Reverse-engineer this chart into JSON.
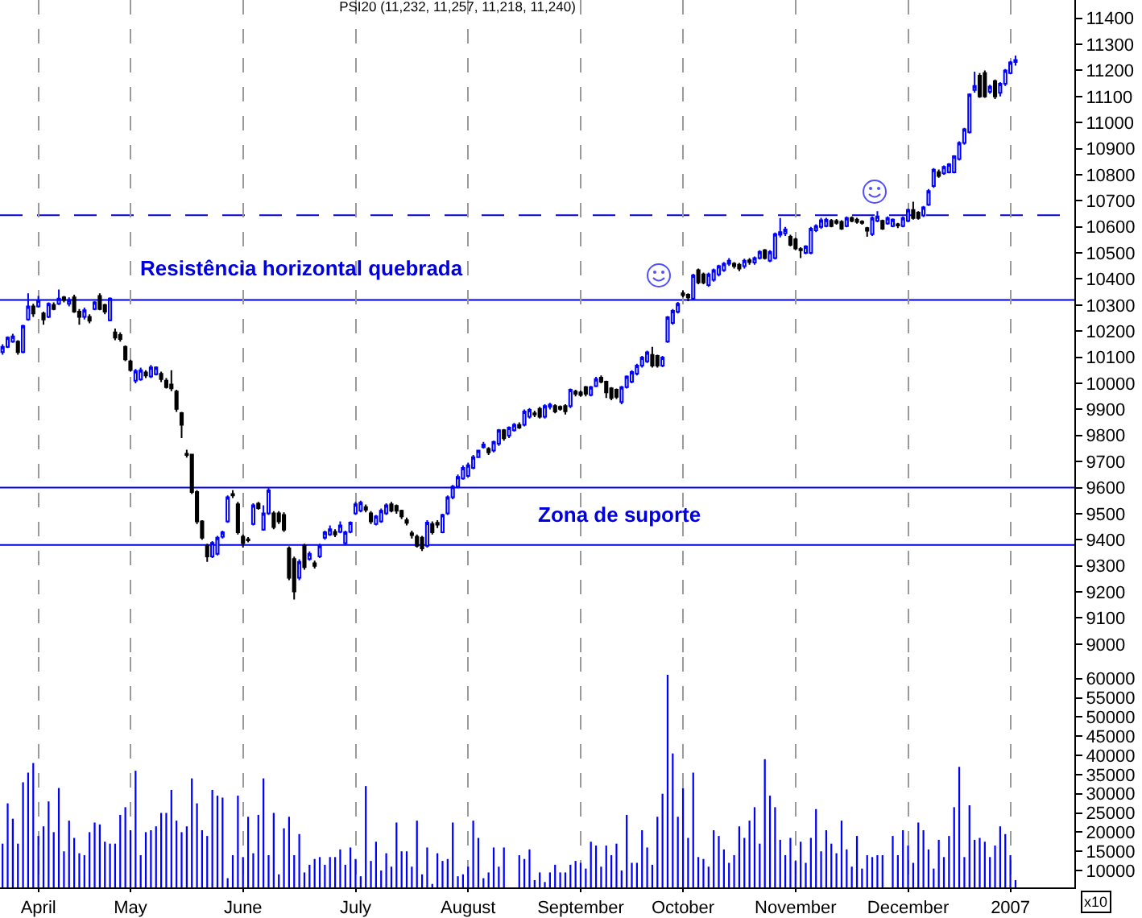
{
  "chart_data": [
    {
      "type": "candlestick",
      "title": "PSI20 (11,232, 11,257, 11,218, 11,240)",
      "categories": [
        null,
        null,
        null,
        null,
        null,
        null,
        null,
        null,
        null,
        null,
        null,
        null,
        null,
        null,
        null,
        null,
        null,
        null,
        null,
        null,
        null,
        null,
        null,
        null,
        null,
        null,
        null,
        null,
        null,
        null,
        null,
        null,
        null,
        null,
        null,
        null,
        null,
        null,
        null,
        null,
        null,
        null,
        null,
        null,
        null,
        null,
        null,
        null,
        null,
        null,
        null,
        null,
        null,
        null,
        null,
        null,
        null,
        null,
        null,
        null,
        null,
        null,
        null,
        null,
        null,
        null,
        null,
        null,
        null,
        null,
        null,
        null,
        null,
        null,
        null,
        null,
        null,
        null,
        null,
        null,
        null,
        null,
        null,
        null,
        null,
        null,
        null,
        null,
        null,
        null,
        null,
        null,
        null,
        null,
        null,
        null,
        null,
        null,
        null,
        null,
        null,
        null,
        null,
        null,
        null,
        null,
        null,
        null,
        null,
        null,
        null,
        null,
        null,
        null,
        null,
        null,
        null,
        null,
        null,
        null,
        null,
        null,
        null,
        null,
        null,
        null,
        null,
        null,
        null,
        null,
        null,
        null,
        null,
        null,
        null,
        null,
        null,
        null,
        null,
        null,
        null,
        null,
        null,
        null,
        null,
        null,
        null,
        null,
        null,
        null,
        null,
        null,
        null,
        null,
        null,
        null,
        null,
        null,
        null,
        null,
        null,
        null,
        null,
        null,
        null,
        null,
        null,
        null,
        null,
        null,
        null,
        null,
        null,
        null,
        null,
        null,
        null,
        null,
        null,
        null,
        null,
        null,
        null,
        null,
        null,
        null,
        null,
        null,
        null,
        null,
        null,
        null,
        null,
        null,
        null,
        null,
        null,
        null,
        null,
        null,
        null,
        null,
        null,
        null,
        null,
        null,
        null,
        null,
        null,
        null
      ],
      "ohlc": [
        [
          10120,
          10150,
          10110,
          10140
        ],
        [
          10140,
          10180,
          10135,
          10175
        ],
        [
          10160,
          10190,
          10155,
          10180
        ],
        [
          10160,
          10165,
          10110,
          10120
        ],
        [
          10120,
          10225,
          10115,
          10220
        ],
        [
          10245,
          10345,
          10240,
          10295
        ],
        [
          10295,
          10305,
          10255,
          10268
        ],
        [
          10295,
          10335,
          10290,
          10318
        ],
        [
          10268,
          10275,
          10225,
          10245
        ],
        [
          10255,
          10310,
          10250,
          10305
        ],
        [
          10300,
          10310,
          10280,
          10285
        ],
        [
          10305,
          10360,
          10300,
          10325
        ],
        [
          10330,
          10335,
          10310,
          10320
        ],
        [
          10305,
          10330,
          10295,
          10320
        ],
        [
          10330,
          10340,
          10270,
          10275
        ],
        [
          10275,
          10285,
          10225,
          10255
        ],
        [
          10255,
          10290,
          10245,
          10280
        ],
        [
          10255,
          10265,
          10230,
          10240
        ],
        [
          10285,
          10315,
          10280,
          10310
        ],
        [
          10335,
          10345,
          10280,
          10285
        ],
        [
          10300,
          10305,
          10265,
          10275
        ],
        [
          10242,
          10330,
          10238,
          10325
        ],
        [
          10195,
          10210,
          10165,
          10175
        ],
        [
          10185,
          10195,
          10160,
          10170
        ],
        [
          10140,
          10145,
          10085,
          10092
        ],
        [
          10084,
          10090,
          10045,
          10051
        ],
        [
          10010,
          10055,
          10000,
          10047
        ],
        [
          10015,
          10060,
          10010,
          10050
        ],
        [
          10042,
          10050,
          10020,
          10030
        ],
        [
          10026,
          10070,
          10020,
          10061
        ],
        [
          10035,
          10065,
          10030,
          10061
        ],
        [
          10036,
          10045,
          10005,
          10016
        ],
        [
          10010,
          10020,
          9980,
          9985
        ],
        [
          9995,
          10050,
          9970,
          9981
        ],
        [
          9968,
          9975,
          9890,
          9902
        ],
        [
          9886,
          9890,
          9790,
          9841
        ],
        [
          9730,
          9745,
          9715,
          9725
        ],
        [
          9727,
          9730,
          9575,
          9583
        ],
        [
          9583,
          9590,
          9460,
          9470
        ],
        [
          9470,
          9475,
          9400,
          9408
        ],
        [
          9377,
          9385,
          9315,
          9336
        ],
        [
          9336,
          9395,
          9330,
          9388
        ],
        [
          9346,
          9415,
          9340,
          9408
        ],
        [
          9412,
          9435,
          9405,
          9429
        ],
        [
          9470,
          9570,
          9465,
          9563
        ],
        [
          9575,
          9590,
          9560,
          9570
        ],
        [
          9536,
          9545,
          9420,
          9429
        ],
        [
          9412,
          9420,
          9370,
          9387
        ],
        [
          9402,
          9410,
          9390,
          9398
        ],
        [
          9460,
          9540,
          9455,
          9532
        ],
        [
          9538,
          9545,
          9515,
          9521
        ],
        [
          9439,
          9532,
          9435,
          9501
        ],
        [
          9501,
          9600,
          9495,
          9589
        ],
        [
          9501,
          9510,
          9440,
          9449
        ],
        [
          9501,
          9510,
          9460,
          9470
        ],
        [
          9495,
          9505,
          9430,
          9439
        ],
        [
          9367,
          9375,
          9245,
          9254
        ],
        [
          9326,
          9335,
          9171,
          9202
        ],
        [
          9254,
          9325,
          9245,
          9315
        ],
        [
          9377,
          9385,
          9285,
          9295
        ],
        [
          9326,
          9355,
          9320,
          9346
        ],
        [
          9310,
          9320,
          9290,
          9300
        ],
        [
          9336,
          9385,
          9330,
          9377
        ],
        [
          9408,
          9435,
          9400,
          9429
        ],
        [
          9420,
          9455,
          9415,
          9440
        ],
        [
          9430,
          9440,
          9410,
          9420
        ],
        [
          9430,
          9470,
          9425,
          9455
        ],
        [
          9387,
          9435,
          9380,
          9429
        ],
        [
          9430,
          9470,
          9425,
          9466
        ],
        [
          9501,
          9545,
          9495,
          9536
        ],
        [
          9511,
          9550,
          9505,
          9542
        ],
        [
          9525,
          9535,
          9505,
          9515
        ],
        [
          9501,
          9510,
          9460,
          9470
        ],
        [
          9460,
          9495,
          9455,
          9490
        ],
        [
          9470,
          9520,
          9465,
          9511
        ],
        [
          9501,
          9540,
          9495,
          9532
        ],
        [
          9536,
          9545,
          9505,
          9511
        ],
        [
          9530,
          9535,
          9500,
          9511
        ],
        [
          9511,
          9515,
          9480,
          9490
        ],
        [
          9475,
          9485,
          9455,
          9465
        ],
        [
          9425,
          9435,
          9405,
          9418
        ],
        [
          9412,
          9420,
          9370,
          9377
        ],
        [
          9408,
          9415,
          9357,
          9367
        ],
        [
          9377,
          9475,
          9370,
          9466
        ],
        [
          9460,
          9470,
          9420,
          9429
        ],
        [
          9465,
          9475,
          9445,
          9458
        ],
        [
          9429,
          9500,
          9425,
          9495
        ],
        [
          9501,
          9570,
          9495,
          9563
        ],
        [
          9563,
          9610,
          9555,
          9604
        ],
        [
          9604,
          9650,
          9598,
          9641
        ],
        [
          9635,
          9685,
          9630,
          9676
        ],
        [
          9645,
          9696,
          9640,
          9686
        ],
        [
          9676,
          9725,
          9670,
          9717
        ],
        [
          9717,
          9745,
          9715,
          9742
        ],
        [
          9755,
          9775,
          9750,
          9765
        ],
        [
          9748,
          9755,
          9725,
          9735
        ],
        [
          9742,
          9780,
          9735,
          9775
        ],
        [
          9768,
          9825,
          9760,
          9820
        ],
        [
          9820,
          9825,
          9780,
          9789
        ],
        [
          9799,
          9835,
          9790,
          9830
        ],
        [
          9820,
          9848,
          9815,
          9841
        ],
        [
          9840,
          9850,
          9825,
          9830
        ],
        [
          9841,
          9900,
          9835,
          9892
        ],
        [
          9872,
          9905,
          9865,
          9898
        ],
        [
          9885,
          9895,
          9870,
          9880
        ],
        [
          9902,
          9910,
          9865,
          9872
        ],
        [
          9872,
          9920,
          9865,
          9913
        ],
        [
          9910,
          9925,
          9900,
          9918
        ],
        [
          9913,
          9920,
          9885,
          9892
        ],
        [
          9910,
          9915,
          9895,
          9902
        ],
        [
          9913,
          9920,
          9880,
          9893
        ],
        [
          9913,
          9980,
          9905,
          9975
        ],
        [
          9968,
          9975,
          9950,
          9960
        ],
        [
          9965,
          9972,
          9948,
          9955
        ],
        [
          9985,
          9990,
          9950,
          9960
        ],
        [
          9955,
          9990,
          9950,
          9985
        ],
        [
          9989,
          10025,
          9985,
          10016
        ],
        [
          10022,
          10030,
          10000,
          10006
        ],
        [
          10006,
          10010,
          9944,
          9965
        ],
        [
          9981,
          9985,
          9935,
          9944
        ],
        [
          9975,
          9980,
          9940,
          9948
        ],
        [
          9928,
          9990,
          9920,
          9985
        ],
        [
          9985,
          10030,
          9980,
          10026
        ],
        [
          10006,
          10050,
          10000,
          10043
        ],
        [
          10037,
          10075,
          10030,
          10068
        ],
        [
          10068,
          10105,
          10060,
          10099
        ],
        [
          10084,
          10125,
          10078,
          10119
        ],
        [
          10109,
          10140,
          10060,
          10068
        ],
        [
          10105,
          10110,
          10060,
          10068
        ],
        [
          10068,
          10105,
          10062,
          10099
        ],
        [
          10160,
          10258,
          10155,
          10253
        ],
        [
          10232,
          10285,
          10225,
          10278
        ],
        [
          10274,
          10312,
          10268,
          10305
        ],
        [
          10345,
          10356,
          10330,
          10338
        ],
        [
          10340,
          10345,
          10315,
          10330
        ],
        [
          10325,
          10420,
          10320,
          10414
        ],
        [
          10434,
          10440,
          10380,
          10387
        ],
        [
          10418,
          10425,
          10380,
          10387
        ],
        [
          10377,
          10425,
          10370,
          10418
        ],
        [
          10397,
          10440,
          10390,
          10434
        ],
        [
          10418,
          10455,
          10410,
          10449
        ],
        [
          10434,
          10465,
          10428,
          10459
        ],
        [
          10459,
          10480,
          10450,
          10470
        ],
        [
          10459,
          10465,
          10440,
          10449
        ],
        [
          10455,
          10462,
          10430,
          10440
        ],
        [
          10449,
          10478,
          10440,
          10470
        ],
        [
          10472,
          10480,
          10455,
          10465
        ],
        [
          10463,
          10486,
          10455,
          10480
        ],
        [
          10480,
          10510,
          10475,
          10504
        ],
        [
          10510,
          10515,
          10475,
          10480
        ],
        [
          10470,
          10510,
          10465,
          10504
        ],
        [
          10480,
          10578,
          10475,
          10572
        ],
        [
          10570,
          10634,
          10560,
          10580
        ],
        [
          10575,
          10600,
          10565,
          10590
        ],
        [
          10562,
          10570,
          10525,
          10531
        ],
        [
          10552,
          10558,
          10510,
          10517
        ],
        [
          10515,
          10522,
          10480,
          10510
        ],
        [
          10500,
          10530,
          10495,
          10525
        ],
        [
          10500,
          10600,
          10495,
          10593
        ],
        [
          10587,
          10610,
          10580,
          10603
        ],
        [
          10600,
          10635,
          10592,
          10625
        ],
        [
          10603,
          10635,
          10598,
          10628
        ],
        [
          10623,
          10630,
          10598,
          10603
        ],
        [
          10622,
          10630,
          10608,
          10615
        ],
        [
          10619,
          10625,
          10588,
          10593
        ],
        [
          10603,
          10640,
          10598,
          10634
        ],
        [
          10634,
          10640,
          10618,
          10623
        ],
        [
          10628,
          10635,
          10612,
          10619
        ],
        [
          10620,
          10625,
          10608,
          10615
        ],
        [
          10595,
          10600,
          10562,
          10585
        ],
        [
          10572,
          10640,
          10565,
          10634
        ],
        [
          10623,
          10660,
          10618,
          10640
        ],
        [
          10623,
          10628,
          10588,
          10593
        ],
        [
          10613,
          10640,
          10608,
          10634
        ],
        [
          10603,
          10632,
          10598,
          10628
        ],
        [
          10610,
          10615,
          10595,
          10605
        ],
        [
          10603,
          10640,
          10598,
          10634
        ],
        [
          10623,
          10670,
          10618,
          10665
        ],
        [
          10665,
          10696,
          10628,
          10634
        ],
        [
          10655,
          10660,
          10628,
          10634
        ],
        [
          10644,
          10680,
          10638,
          10675
        ],
        [
          10685,
          10745,
          10680,
          10737
        ],
        [
          10757,
          10825,
          10750,
          10819
        ],
        [
          10810,
          10820,
          10788,
          10795
        ],
        [
          10805,
          10835,
          10800,
          10830
        ],
        [
          10809,
          10845,
          10805,
          10840
        ],
        [
          10809,
          10875,
          10805,
          10871
        ],
        [
          10860,
          10928,
          10855,
          10922
        ],
        [
          10922,
          10980,
          10915,
          10974
        ],
        [
          10963,
          11112,
          10958,
          11108
        ],
        [
          11125,
          11195,
          11115,
          11140
        ],
        [
          11180,
          11190,
          11095,
          11100
        ],
        [
          11190,
          11200,
          11095,
          11100
        ],
        [
          11118,
          11145,
          11110,
          11138
        ],
        [
          11159,
          11165,
          11090,
          11100
        ],
        [
          11114,
          11155,
          11100,
          11149
        ],
        [
          11149,
          11205,
          11140,
          11200
        ],
        [
          11190,
          11236,
          11185,
          11231
        ],
        [
          11232,
          11257,
          11218,
          11240
        ],
        null,
        null,
        null,
        null,
        null,
        null,
        null,
        null,
        null,
        null,
        null
      ],
      "ylim": [
        8950,
        11470
      ],
      "yticks": [
        9000,
        9100,
        9200,
        9300,
        9400,
        9500,
        9600,
        9700,
        9800,
        9900,
        10000,
        10100,
        10200,
        10300,
        10400,
        10500,
        10600,
        10700,
        10800,
        10900,
        11000,
        11100,
        11200,
        11300,
        11400
      ],
      "grid": "x",
      "ref_lines": [
        {
          "axis": "y",
          "value": 10320,
          "label": "Resistência horizontal quebrada",
          "color": "#0000dd"
        },
        {
          "axis": "y",
          "value": 9600,
          "label": "Zona de suporte",
          "color": "#0000dd"
        },
        {
          "axis": "y",
          "value": 9380,
          "color": "#0000dd"
        },
        {
          "axis": "y",
          "value": 10645,
          "color": "#0000dd",
          "line_style": "dashed"
        }
      ]
    },
    {
      "type": "bar",
      "categories": [
        null,
        null,
        null,
        null,
        null,
        null,
        null,
        "April",
        null,
        null,
        null,
        null,
        null,
        null,
        null,
        null,
        null,
        null,
        null,
        null,
        null,
        null,
        null,
        null,
        null,
        "May",
        null,
        null,
        null,
        null,
        null,
        null,
        null,
        null,
        null,
        null,
        null,
        null,
        null,
        null,
        null,
        null,
        null,
        null,
        null,
        null,
        null,
        "June",
        null,
        null,
        null,
        null,
        null,
        null,
        null,
        null,
        null,
        null,
        null,
        null,
        null,
        null,
        null,
        null,
        null,
        null,
        null,
        null,
        null,
        "July",
        null,
        null,
        null,
        null,
        null,
        null,
        null,
        null,
        null,
        null,
        null,
        null,
        null,
        null,
        null,
        null,
        null,
        null,
        null,
        null,
        null,
        "August",
        null,
        null,
        null,
        null,
        null,
        null,
        null,
        null,
        null,
        null,
        null,
        null,
        null,
        null,
        null,
        null,
        null,
        null,
        null,
        null,
        null,
        "September",
        null,
        null,
        null,
        null,
        null,
        null,
        null,
        null,
        null,
        null,
        null,
        null,
        null,
        null,
        null,
        null,
        null,
        null,
        null,
        "October",
        null,
        null,
        null,
        null,
        null,
        null,
        null,
        null,
        null,
        null,
        null,
        null,
        null,
        null,
        null,
        null,
        null,
        null,
        null,
        null,
        null,
        "November",
        null,
        null,
        null,
        null,
        null,
        null,
        null,
        null,
        null,
        null,
        null,
        null,
        null,
        null,
        null,
        null,
        null,
        null,
        null,
        null,
        null,
        "December",
        null,
        null,
        null,
        null,
        null,
        null,
        null,
        null,
        null,
        null,
        null,
        null,
        null,
        null,
        null,
        null,
        null,
        null,
        null,
        "2007",
        null,
        null,
        null,
        null,
        null,
        null,
        null,
        null,
        null,
        null,
        null,
        null
      ],
      "values": [
        17000,
        27500,
        23500,
        17000,
        33000,
        35500,
        38000,
        19000,
        21500,
        28000,
        20000,
        31500,
        15000,
        23000,
        18500,
        14500,
        14000,
        20000,
        22500,
        22000,
        17500,
        17000,
        17000,
        24500,
        26500,
        20500,
        36000,
        14000,
        20000,
        20500,
        21500,
        25000,
        25000,
        31000,
        23000,
        20000,
        21500,
        34000,
        27500,
        20500,
        19000,
        31000,
        29500,
        29000,
        8000,
        14000,
        29500,
        13500,
        24000,
        14500,
        24500,
        34000,
        14000,
        25000,
        9000,
        21000,
        24000,
        14000,
        19500,
        9500,
        11500,
        13000,
        13500,
        11500,
        13500,
        13500,
        15500,
        11500,
        16000,
        13000,
        8500,
        32000,
        12500,
        17500,
        10000,
        14500,
        11000,
        22500,
        15000,
        15000,
        11000,
        23000,
        9000,
        16000,
        6500,
        14500,
        12500,
        13000,
        22500,
        8500,
        9000,
        11000,
        23000,
        18500,
        8000,
        9500,
        16000,
        11000,
        16000,
        null,
        null,
        14000,
        13000,
        15500,
        7500,
        9500,
        7000,
        9500,
        11500,
        9500,
        9500,
        11500,
        12500,
        12000,
        10500,
        17500,
        16500,
        11000,
        16500,
        14000,
        17000,
        10000,
        24500,
        12000,
        12000,
        20500,
        16000,
        11500,
        24000,
        30000,
        61000,
        40500,
        24000,
        31500,
        18500,
        35500,
        13500,
        13000,
        11000,
        20500,
        19000,
        15500,
        12000,
        14000,
        21500,
        18500,
        23000,
        26500,
        17000,
        39000,
        29500,
        26500,
        18000,
        14000,
        18500,
        12500,
        17500,
        12000,
        18500,
        26000,
        15000,
        20500,
        17000,
        14500,
        23000,
        15500,
        11000,
        19000,
        10500,
        14000,
        13500,
        14000,
        14000,
        null,
        19000,
        14000,
        20500,
        16500,
        12000,
        22500,
        20500,
        15500,
        10500,
        18000,
        13500,
        19000,
        26500,
        37000,
        13500,
        27000,
        18000,
        18500,
        17500,
        13500,
        16500,
        21500,
        19500,
        14000,
        7500,
        null,
        null,
        null,
        null,
        null,
        null,
        null,
        null,
        null,
        null,
        null
      ],
      "color": "#0000ff",
      "ylim": [
        5600,
        65600
      ],
      "yticks": [
        10000,
        15000,
        20000,
        25000,
        30000,
        35000,
        40000,
        45000,
        50000,
        55000,
        60000
      ],
      "grid": "x",
      "annotations": [
        "x10"
      ]
    }
  ]
}
